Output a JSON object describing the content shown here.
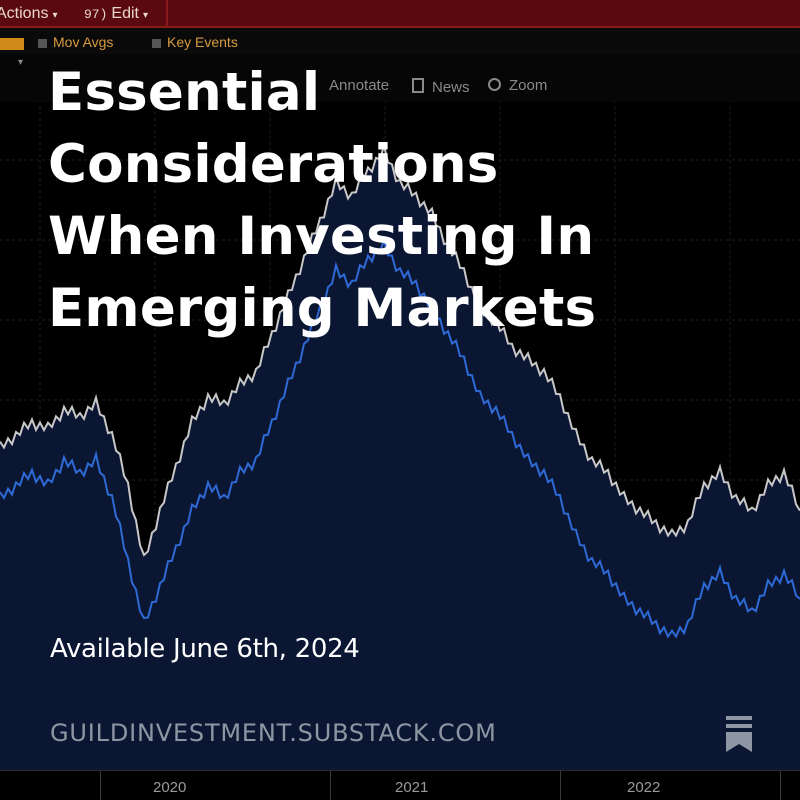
{
  "toolbar": {
    "actions_label": "Actions",
    "edit_label": "Edit",
    "edit_prefix": "97)",
    "mov_avgs_label": "Mov Avgs",
    "key_events_label": "Key Events",
    "annotate_label": "Annotate",
    "news_label": "News",
    "zoom_label": "Zoom"
  },
  "headline": "Essential Considerations When Investing In Emerging Markets",
  "available_text": "Available June 6th, 2024",
  "site_url": "GUILDINVESTMENT.SUBSTACK.COM",
  "icons": {
    "bookmark": "bookmark-icon",
    "caret": "chevron-down-icon",
    "zoom": "search-icon",
    "news": "document-icon"
  },
  "colors": {
    "background": "#000000",
    "series_white": "#c8c8c8",
    "series_blue": "#2e6ad6",
    "area_fill": "#0b1633",
    "toolbar": "#5a0a0e",
    "accent_orange": "#d08a1a"
  },
  "chart_data": {
    "type": "line",
    "x_labels": [
      "2020",
      "2021",
      "2022"
    ],
    "grid": true,
    "series": [
      {
        "color": "#c8c8c8",
        "values": [
          48,
          50,
          52,
          51,
          54,
          53,
          55,
          50,
          42,
          30,
          38,
          45,
          52,
          56,
          55,
          58,
          60,
          66,
          72,
          78,
          84,
          90,
          88,
          92,
          95,
          90,
          88,
          85,
          80,
          76,
          70,
          68,
          64,
          62,
          60,
          56,
          50,
          46,
          44,
          40,
          38,
          36,
          34,
          36,
          42,
          44,
          40,
          38,
          42,
          44,
          38
        ]
      },
      {
        "color": "#2e6ad6",
        "values": [
          40,
          42,
          44,
          42,
          46,
          44,
          46,
          40,
          30,
          20,
          26,
          32,
          38,
          42,
          40,
          44,
          46,
          52,
          58,
          64,
          70,
          76,
          74,
          78,
          80,
          76,
          74,
          70,
          66,
          62,
          56,
          54,
          50,
          46,
          44,
          40,
          34,
          30,
          28,
          24,
          22,
          20,
          18,
          20,
          26,
          28,
          24,
          22,
          26,
          28,
          24
        ]
      }
    ]
  }
}
